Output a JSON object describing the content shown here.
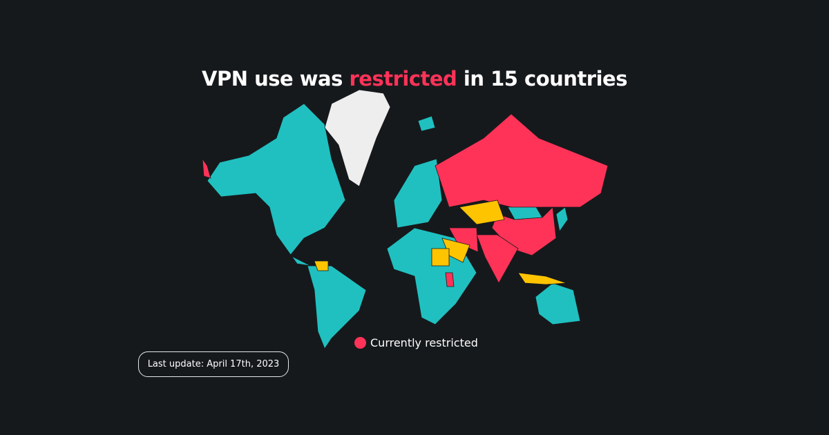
{
  "title": {
    "prefix": "VPN use was ",
    "highlight": "restricted",
    "suffix": " in 15 countries"
  },
  "legend": {
    "label": "Currently restricted",
    "color": "#ff3358"
  },
  "last_update": "Last update: April 17th, 2023",
  "colors": {
    "background": "#16191c",
    "restricted": "#ff3358",
    "partial": "#ffc400",
    "unrestricted": "#20c0c0",
    "no_data": "#eeeeee"
  }
}
